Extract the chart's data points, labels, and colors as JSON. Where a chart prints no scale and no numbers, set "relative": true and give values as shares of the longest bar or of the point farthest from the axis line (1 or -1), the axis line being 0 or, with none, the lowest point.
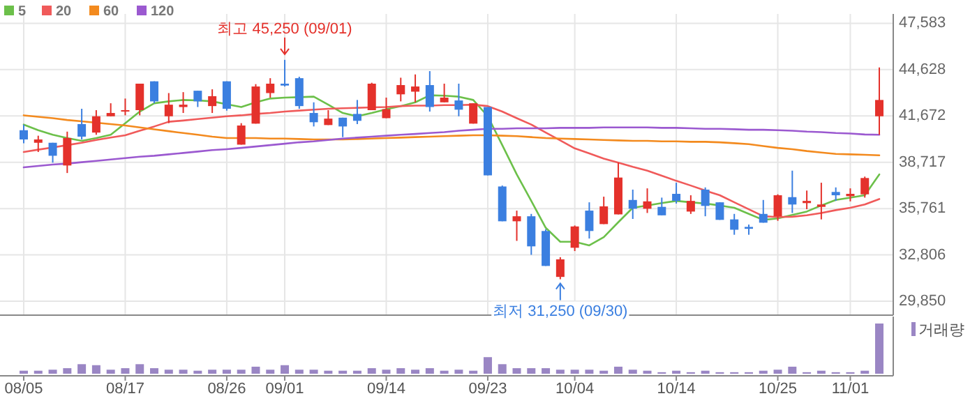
{
  "chart_data": [
    {
      "type": "candlestick",
      "categories": [
        "08/05",
        null,
        null,
        null,
        null,
        null,
        null,
        "08/17",
        null,
        null,
        null,
        null,
        null,
        null,
        "08/26",
        null,
        null,
        null,
        "09/01",
        null,
        null,
        null,
        null,
        null,
        null,
        "09/14",
        null,
        null,
        null,
        null,
        null,
        null,
        "09/23",
        null,
        null,
        null,
        null,
        null,
        "10/04",
        null,
        null,
        null,
        null,
        null,
        null,
        "10/14",
        null,
        null,
        null,
        null,
        null,
        null,
        "10/25",
        null,
        null,
        null,
        null,
        "11/01",
        null,
        null
      ],
      "ohlc": [
        [
          40760,
          41120,
          39930,
          40170
        ],
        [
          39960,
          40410,
          39370,
          40170
        ],
        [
          39960,
          39960,
          38690,
          39130
        ],
        [
          38510,
          40670,
          38030,
          40260
        ],
        [
          41150,
          42130,
          40170,
          40350
        ],
        [
          40610,
          42040,
          40470,
          41650
        ],
        [
          41650,
          42480,
          41650,
          41860
        ],
        [
          41980,
          42780,
          41710,
          42040
        ],
        [
          42040,
          43730,
          41710,
          43730
        ],
        [
          43880,
          43880,
          42480,
          42600
        ],
        [
          41650,
          43130,
          41210,
          42390
        ],
        [
          42240,
          43190,
          41860,
          42390
        ],
        [
          43280,
          43280,
          42240,
          42600
        ],
        [
          42300,
          43370,
          41860,
          42930
        ],
        [
          43880,
          43880,
          42010,
          42130
        ],
        [
          39840,
          41210,
          39840,
          41060
        ],
        [
          41180,
          43700,
          41180,
          43550
        ],
        [
          43130,
          44080,
          42840,
          43730
        ],
        [
          43730,
          45250,
          43550,
          43610
        ],
        [
          44080,
          44170,
          42130,
          42300
        ],
        [
          41860,
          42540,
          41000,
          41270
        ],
        [
          41090,
          42040,
          41090,
          41500
        ],
        [
          41560,
          41560,
          40320,
          41000
        ],
        [
          41800,
          42690,
          41150,
          41360
        ],
        [
          42040,
          43790,
          42040,
          43730
        ],
        [
          41530,
          42840,
          41530,
          42100
        ],
        [
          43050,
          44110,
          42600,
          43640
        ],
        [
          43220,
          44320,
          42540,
          43550
        ],
        [
          43640,
          44530,
          41950,
          42240
        ],
        [
          42540,
          43730,
          42540,
          42840
        ],
        [
          42660,
          43730,
          41650,
          42070
        ],
        [
          41180,
          42480,
          41180,
          42480
        ],
        [
          42240,
          42240,
          37880,
          37880
        ],
        [
          37170,
          37230,
          34950,
          34950
        ],
        [
          34950,
          35630,
          33700,
          35270
        ],
        [
          35270,
          35420,
          32810,
          33350
        ],
        [
          34330,
          34440,
          32100,
          32100
        ],
        [
          31400,
          32660,
          31250,
          32520
        ],
        [
          33260,
          34680,
          33050,
          34620
        ],
        [
          35630,
          36160,
          33850,
          34330
        ],
        [
          34770,
          36520,
          34770,
          35900
        ],
        [
          35390,
          38690,
          35390,
          37740
        ],
        [
          36310,
          36970,
          35100,
          35750
        ],
        [
          35750,
          37050,
          35480,
          36220
        ],
        [
          35870,
          36460,
          35330,
          35330
        ],
        [
          36700,
          37410,
          36080,
          36250
        ],
        [
          35570,
          36610,
          35420,
          36250
        ],
        [
          36970,
          37110,
          35270,
          35930
        ],
        [
          36160,
          36160,
          35040,
          35040
        ],
        [
          35070,
          35420,
          34090,
          34410
        ],
        [
          34590,
          34740,
          34090,
          34470
        ],
        [
          35420,
          36310,
          34860,
          34860
        ],
        [
          35270,
          36670,
          34980,
          36610
        ],
        [
          36490,
          38180,
          35480,
          36020
        ],
        [
          36110,
          36910,
          35720,
          36250
        ],
        [
          35870,
          37410,
          35070,
          36020
        ],
        [
          36820,
          37110,
          36250,
          36610
        ],
        [
          36550,
          37050,
          36220,
          36700
        ],
        [
          36670,
          37800,
          36460,
          37710
        ],
        [
          41650,
          44770,
          40470,
          42690
        ]
      ],
      "series": [
        {
          "type": "line",
          "name": "5",
          "color": "#6cc04a",
          "values": [
            41120,
            40760,
            40470,
            40260,
            40080,
            40260,
            40470,
            41210,
            41950,
            42480,
            42600,
            42690,
            42660,
            42600,
            42420,
            42240,
            42540,
            42780,
            42840,
            42870,
            42900,
            42390,
            41860,
            41650,
            41860,
            42100,
            42300,
            42540,
            42990,
            42960,
            42900,
            42690,
            41650,
            39810,
            37940,
            36250,
            34530,
            33640,
            33640,
            33410,
            33940,
            34890,
            35810,
            35960,
            36110,
            36250,
            36160,
            36080,
            35960,
            35810,
            35420,
            35040,
            35130,
            35360,
            35570,
            35960,
            36310,
            36460,
            36610,
            37940
          ]
        },
        {
          "type": "line",
          "name": "20",
          "color": "#f05a5a",
          "values": [
            39370,
            39520,
            39660,
            39810,
            39960,
            40140,
            40290,
            40440,
            40730,
            41000,
            41300,
            41380,
            41470,
            41560,
            41650,
            41710,
            41800,
            41860,
            41950,
            42010,
            42070,
            42130,
            42160,
            42190,
            42220,
            42240,
            42300,
            42330,
            42330,
            42360,
            42360,
            42390,
            42300,
            41950,
            41530,
            41120,
            40610,
            40110,
            39600,
            39280,
            38950,
            38690,
            38420,
            38180,
            37860,
            37530,
            37230,
            36910,
            36610,
            36160,
            35720,
            35270,
            35220,
            35240,
            35330,
            35480,
            35660,
            35810,
            36020,
            36370
          ]
        },
        {
          "type": "line",
          "name": "60",
          "color": "#f38a1e",
          "values": [
            41710,
            41620,
            41530,
            41410,
            41330,
            41240,
            41150,
            41060,
            40940,
            40820,
            40700,
            40580,
            40470,
            40350,
            40260,
            40260,
            40260,
            40230,
            40230,
            40200,
            40170,
            40170,
            40170,
            40200,
            40230,
            40260,
            40290,
            40320,
            40350,
            40380,
            40410,
            40440,
            40440,
            40410,
            40380,
            40320,
            40260,
            40230,
            40200,
            40170,
            40140,
            40110,
            40080,
            40080,
            40050,
            40050,
            40020,
            40020,
            39990,
            39930,
            39870,
            39750,
            39630,
            39550,
            39430,
            39340,
            39250,
            39220,
            39190,
            39160
          ]
        },
        {
          "type": "line",
          "name": "120",
          "color": "#9b59d0",
          "values": [
            38390,
            38480,
            38570,
            38630,
            38720,
            38800,
            38890,
            38980,
            39070,
            39130,
            39220,
            39310,
            39400,
            39490,
            39550,
            39630,
            39720,
            39810,
            39900,
            39990,
            40050,
            40140,
            40230,
            40290,
            40350,
            40410,
            40470,
            40520,
            40580,
            40640,
            40730,
            40790,
            40850,
            40850,
            40880,
            40880,
            40880,
            40910,
            40910,
            40910,
            40940,
            40940,
            40940,
            40940,
            40910,
            40910,
            40880,
            40850,
            40850,
            40820,
            40790,
            40790,
            40760,
            40730,
            40670,
            40640,
            40580,
            40550,
            40490,
            40470
          ]
        }
      ],
      "ylim": [
        29850,
        47583
      ],
      "yticks": [
        {
          "value": 29850,
          "label": "29,850"
        },
        {
          "value": 32806,
          "label": "32,806"
        },
        {
          "value": 35761,
          "label": "35,761"
        },
        {
          "value": 38717,
          "label": "38,717"
        },
        {
          "value": 41672,
          "label": "41,672"
        },
        {
          "value": 44628,
          "label": "44,628"
        },
        {
          "value": 47583,
          "label": "47,583"
        }
      ],
      "grid": true,
      "legend": "top left",
      "annotations": [
        {
          "text": "최고 45,250 (09/01)",
          "x": "09/01",
          "y": 45250
        },
        {
          "text": "최저 31,250 (09/30)",
          "y": 31250
        }
      ]
    },
    {
      "type": "bar",
      "categories": [
        null,
        null,
        null,
        null,
        null,
        null,
        null,
        null,
        null,
        null,
        null,
        null,
        null,
        null,
        null,
        null,
        null,
        null,
        null,
        null,
        null,
        null,
        null,
        null,
        null,
        null,
        null,
        null,
        null,
        null,
        null,
        null,
        null,
        null,
        null,
        null,
        null,
        null,
        null,
        null,
        null,
        null,
        null,
        null,
        null,
        null,
        null,
        null,
        null,
        null,
        null,
        null,
        null,
        null,
        null,
        null,
        null,
        null,
        null,
        null
      ],
      "series": [
        {
          "name": "거래량",
          "color": "#9a86c4",
          "values": [
            0.06,
            0.06,
            0.08,
            0.11,
            0.19,
            0.17,
            0.08,
            0.11,
            0.19,
            0.11,
            0.08,
            0.08,
            0.06,
            0.08,
            0.08,
            0.08,
            0.14,
            0.08,
            0.17,
            0.08,
            0.08,
            0.06,
            0.06,
            0.06,
            0.11,
            0.08,
            0.11,
            0.08,
            0.11,
            0.06,
            0.08,
            0.06,
            0.33,
            0.19,
            0.11,
            0.11,
            0.11,
            0.08,
            0.08,
            0.08,
            0.06,
            0.14,
            0.08,
            0.06,
            0.03,
            0.06,
            0.03,
            0.06,
            0.03,
            0.03,
            0.03,
            0.06,
            0.08,
            0.14,
            0.03,
            0.06,
            0.03,
            0.03,
            0.06,
            1
          ]
        }
      ],
      "relative": true,
      "legend": "top right"
    }
  ]
}
